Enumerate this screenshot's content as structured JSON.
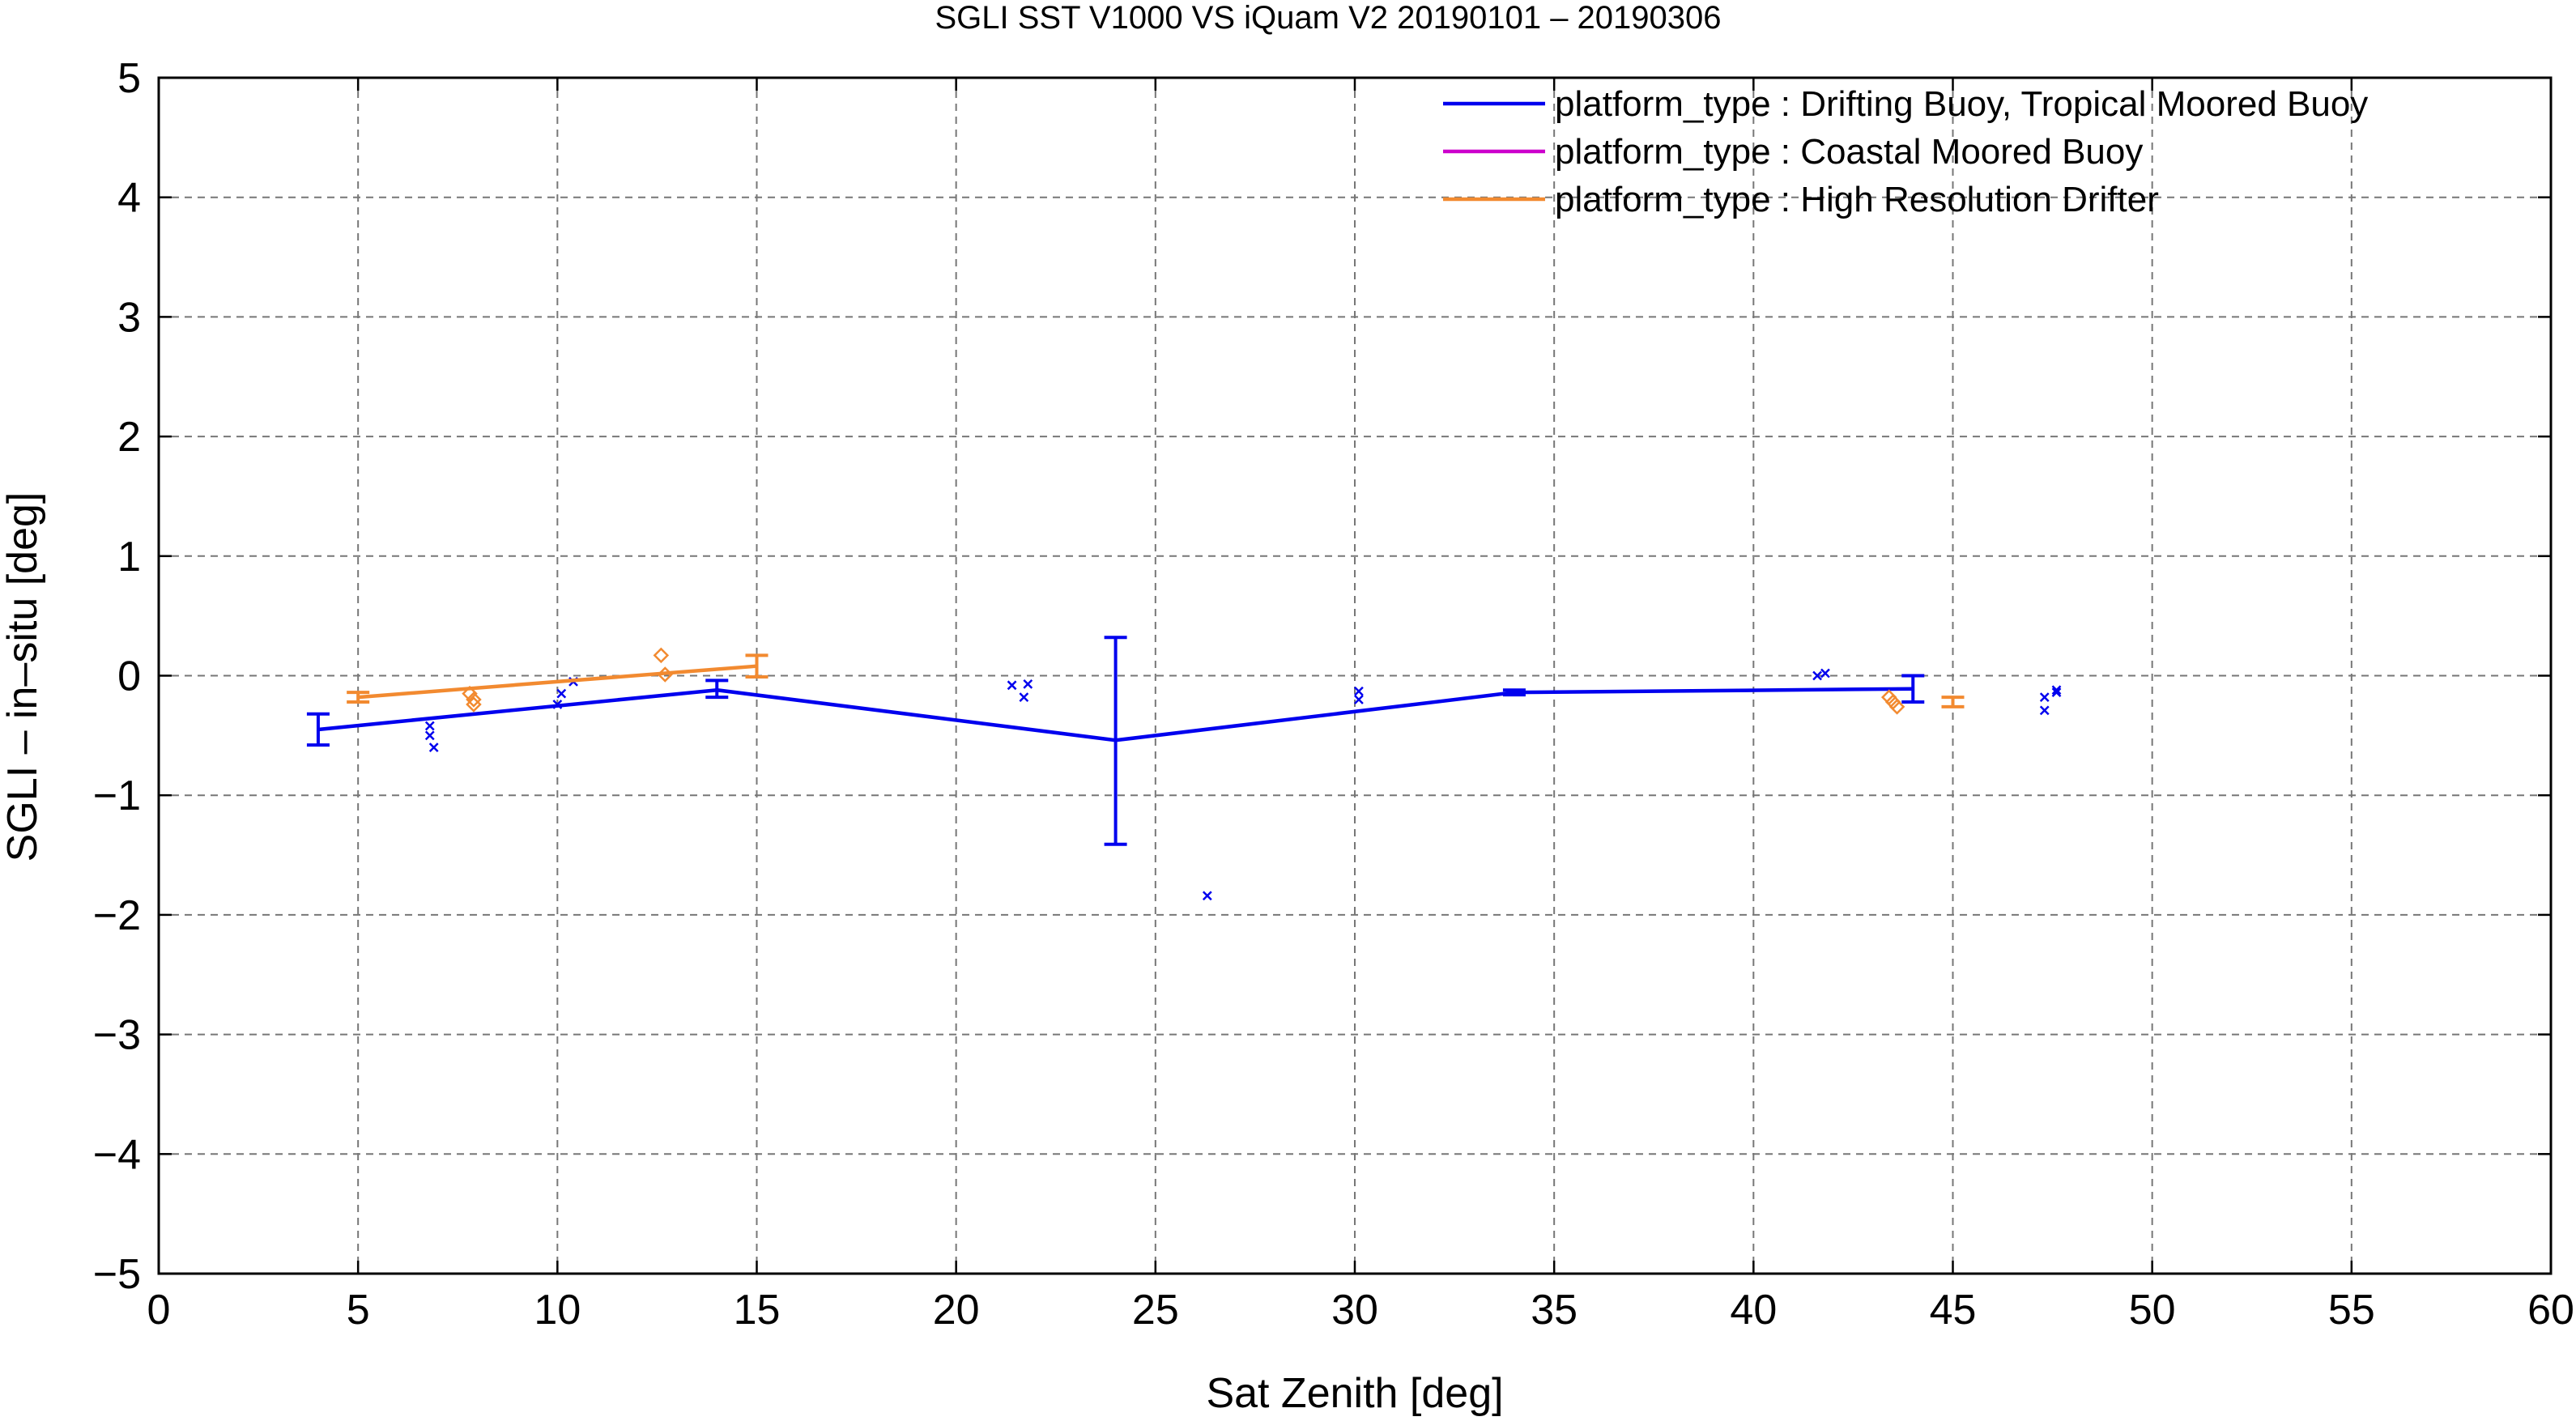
{
  "chart_data": {
    "type": "line",
    "title": "SGLI SST V1000 VS iQuam V2 20190101 – 20190306",
    "xlabel": "Sat Zenith [deg]",
    "ylabel": "SGLI – in–situ [deg]",
    "xlim": [
      0,
      60
    ],
    "ylim": [
      -5,
      5
    ],
    "xticks": [
      0,
      5,
      10,
      15,
      20,
      25,
      30,
      35,
      40,
      45,
      50,
      55,
      60
    ],
    "yticks": [
      -5,
      -4,
      -3,
      -2,
      -1,
      0,
      1,
      2,
      3,
      4,
      5
    ],
    "xtick_labels": [
      "0",
      "5",
      "10",
      "15",
      "20",
      "25",
      "30",
      "35",
      "40",
      "45",
      "50",
      "55",
      "60"
    ],
    "ytick_labels": [
      "−5",
      "−4",
      "−3",
      "−2",
      "−1",
      "0",
      "1",
      "2",
      "3",
      "4",
      "5"
    ],
    "grid": true,
    "legend_position": "top-right",
    "series": [
      {
        "name": "platform_type : Drifting Buoy, Tropical Moored Buoy",
        "color": "#0000ee",
        "marker": "x",
        "line": [
          {
            "x": 4,
            "y": -0.45,
            "lo": -0.58,
            "hi": -0.32
          },
          {
            "x": 14,
            "y": -0.12,
            "lo": -0.18,
            "hi": -0.04
          },
          {
            "x": 24,
            "y": -0.54,
            "lo": -1.41,
            "hi": 0.32
          },
          {
            "x": 34,
            "y": -0.14,
            "lo": -0.16,
            "hi": -0.12
          },
          {
            "x": 44,
            "y": -0.11,
            "lo": -0.22,
            "hi": 0.0
          }
        ],
        "points": [
          {
            "x": 6.8,
            "y": -0.42
          },
          {
            "x": 6.8,
            "y": -0.5
          },
          {
            "x": 6.9,
            "y": -0.6
          },
          {
            "x": 10.0,
            "y": -0.24
          },
          {
            "x": 10.1,
            "y": -0.15
          },
          {
            "x": 10.4,
            "y": -0.05
          },
          {
            "x": 21.4,
            "y": -0.08
          },
          {
            "x": 21.7,
            "y": -0.18
          },
          {
            "x": 21.8,
            "y": -0.07
          },
          {
            "x": 26.3,
            "y": -1.84
          },
          {
            "x": 30.1,
            "y": -0.13
          },
          {
            "x": 30.1,
            "y": -0.2
          },
          {
            "x": 41.6,
            "y": 0.0
          },
          {
            "x": 41.8,
            "y": 0.02
          },
          {
            "x": 47.3,
            "y": -0.18
          },
          {
            "x": 47.3,
            "y": -0.29
          },
          {
            "x": 47.6,
            "y": -0.12
          },
          {
            "x": 47.6,
            "y": -0.14
          }
        ]
      },
      {
        "name": "platform_type : Coastal Moored Buoy",
        "color": "#cc00cc",
        "marker": "none",
        "line": [],
        "points": []
      },
      {
        "name": "platform_type : High Resolution Drifter",
        "color": "#f28a30",
        "marker": "diamond",
        "line": [
          {
            "x": 5,
            "y": -0.18,
            "lo": -0.22,
            "hi": -0.14
          },
          {
            "x": 15,
            "y": 0.08,
            "lo": -0.01,
            "hi": 0.17
          }
        ],
        "points": [
          {
            "x": 7.8,
            "y": -0.15
          },
          {
            "x": 7.9,
            "y": -0.24
          },
          {
            "x": 7.9,
            "y": -0.2
          },
          {
            "x": 12.6,
            "y": 0.17
          },
          {
            "x": 12.7,
            "y": 0.01
          },
          {
            "x": 43.4,
            "y": -0.18
          },
          {
            "x": 43.5,
            "y": -0.22
          },
          {
            "x": 43.6,
            "y": -0.26
          }
        ],
        "extra_bars": [
          {
            "x": 45,
            "y": -0.22,
            "lo": -0.26,
            "hi": -0.18
          }
        ]
      }
    ]
  }
}
